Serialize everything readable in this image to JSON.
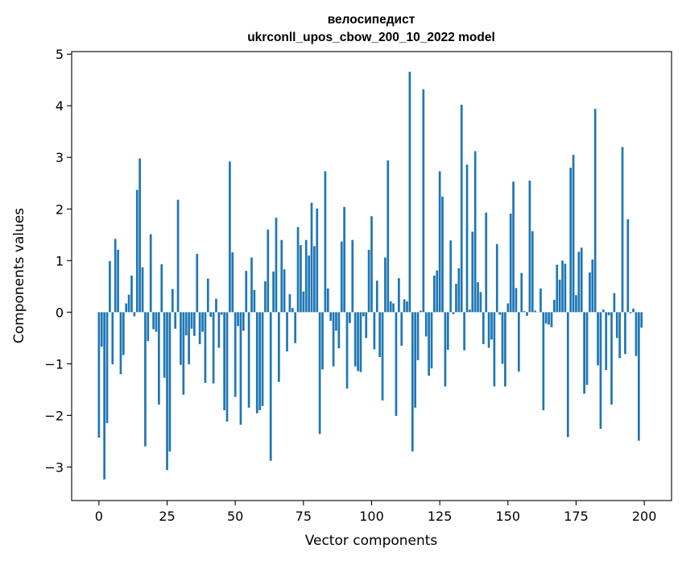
{
  "chart_data": {
    "type": "bar",
    "title": [
      "велосипедист",
      "ukrconll_upos_cbow_200_10_2022 model"
    ],
    "xlabel": "Vector components",
    "ylabel": "Components values",
    "xlim": [
      -10,
      210
    ],
    "ylim": [
      -3.65,
      5.05
    ],
    "xticks": [
      0,
      25,
      50,
      75,
      100,
      125,
      150,
      175,
      200
    ],
    "yticks": [
      -3,
      -2,
      -1,
      0,
      1,
      2,
      3,
      4,
      5
    ],
    "ytick_labels": [
      "−3",
      "−2",
      "−1",
      "0",
      "1",
      "2",
      "3",
      "4",
      "5"
    ],
    "grid": false,
    "bar_color": "#1f77b4",
    "x": [
      0,
      1,
      2,
      3,
      4,
      5,
      6,
      7,
      8,
      9,
      10,
      11,
      12,
      13,
      14,
      15,
      16,
      17,
      18,
      19,
      20,
      21,
      22,
      23,
      24,
      25,
      26,
      27,
      28,
      29,
      30,
      31,
      32,
      33,
      34,
      35,
      36,
      37,
      38,
      39,
      40,
      41,
      42,
      43,
      44,
      45,
      46,
      47,
      48,
      49,
      50,
      51,
      52,
      53,
      54,
      55,
      56,
      57,
      58,
      59,
      60,
      61,
      62,
      63,
      64,
      65,
      66,
      67,
      68,
      69,
      70,
      71,
      72,
      73,
      74,
      75,
      76,
      77,
      78,
      79,
      80,
      81,
      82,
      83,
      84,
      85,
      86,
      87,
      88,
      89,
      90,
      91,
      92,
      93,
      94,
      95,
      96,
      97,
      98,
      99,
      100,
      101,
      102,
      103,
      104,
      105,
      106,
      107,
      108,
      109,
      110,
      111,
      112,
      113,
      114,
      115,
      116,
      117,
      118,
      119,
      120,
      121,
      122,
      123,
      124,
      125,
      126,
      127,
      128,
      129,
      130,
      131,
      132,
      133,
      134,
      135,
      136,
      137,
      138,
      139,
      140,
      141,
      142,
      143,
      144,
      145,
      146,
      147,
      148,
      149,
      150,
      151,
      152,
      153,
      154,
      155,
      156,
      157,
      158,
      159,
      160,
      161,
      162,
      163,
      164,
      165,
      166,
      167,
      168,
      169,
      170,
      171,
      172,
      173,
      174,
      175,
      176,
      177,
      178,
      179,
      180,
      181,
      182,
      183,
      184,
      185,
      186,
      187,
      188,
      189,
      190,
      191,
      192,
      193,
      194,
      195,
      196,
      197,
      198,
      199
    ],
    "values": [
      -2.43,
      -0.67,
      -3.24,
      -2.15,
      0.99,
      -1.01,
      1.42,
      1.21,
      -1.2,
      -0.83,
      0.17,
      0.34,
      0.71,
      -0.08,
      2.37,
      2.98,
      0.87,
      -2.6,
      -0.56,
      1.51,
      -0.33,
      -0.38,
      -1.79,
      0.93,
      -1.27,
      -3.06,
      -2.7,
      0.45,
      -0.32,
      2.18,
      -1.02,
      -1.6,
      -0.45,
      -1.01,
      -0.32,
      -0.46,
      1.13,
      -0.62,
      -0.38,
      -1.37,
      0.65,
      -0.09,
      -1.38,
      0.26,
      -0.69,
      -0.05,
      -1.9,
      -2.12,
      2.92,
      1.16,
      -1.64,
      -0.27,
      -2.18,
      -0.36,
      0.8,
      -1.85,
      1.06,
      0.43,
      -1.96,
      -1.9,
      -1.82,
      0.6,
      1.6,
      -2.88,
      0.79,
      1.83,
      -1.35,
      1.4,
      0.83,
      -0.76,
      0.35,
      0.08,
      -0.6,
      1.65,
      1.3,
      0.4,
      1.4,
      1.1,
      2.12,
      1.28,
      2.01,
      -2.36,
      -1.11,
      2.73,
      0.46,
      -0.17,
      -1.05,
      -0.36,
      -0.7,
      1.37,
      2.04,
      -1.48,
      -0.21,
      1.4,
      -1.05,
      -1.14,
      -1.16,
      -0.08,
      -0.5,
      1.21,
      1.86,
      -0.72,
      0.61,
      -0.87,
      -1.71,
      1.06,
      2.94,
      0.21,
      0.17,
      -2.01,
      0.66,
      -0.65,
      0.25,
      0.21,
      4.66,
      -2.7,
      -1.85,
      -0.93,
      0.03,
      4.32,
      -0.47,
      -1.23,
      -1.09,
      0.71,
      0.81,
      2.73,
      2.24,
      -1.44,
      -0.73,
      1.39,
      -0.04,
      0.55,
      0.85,
      4.02,
      -0.74,
      2.86,
      0.05,
      1.56,
      3.12,
      0.58,
      0.39,
      -0.62,
      1.93,
      -0.69,
      -0.53,
      -1.44,
      1.32,
      -0.05,
      -1.0,
      -1.44,
      0.17,
      1.91,
      2.53,
      0.47,
      -1.15,
      0.76,
      0.02,
      -0.07,
      2.55,
      1.57,
      0.03,
      0.0,
      0.46,
      -1.9,
      -0.22,
      -0.24,
      -0.29,
      0.24,
      0.92,
      0.63,
      1.0,
      0.94,
      -2.42,
      2.8,
      3.05,
      0.33,
      1.17,
      1.25,
      -1.58,
      -1.41,
      0.77,
      1.02,
      3.94,
      -1.03,
      -2.26,
      0.05,
      -1.12,
      -0.06,
      -1.79,
      0.37,
      -0.5,
      -0.89,
      3.2,
      -0.81,
      1.8,
      -0.02,
      0.07,
      -0.85,
      -2.49,
      -0.3
    ]
  }
}
